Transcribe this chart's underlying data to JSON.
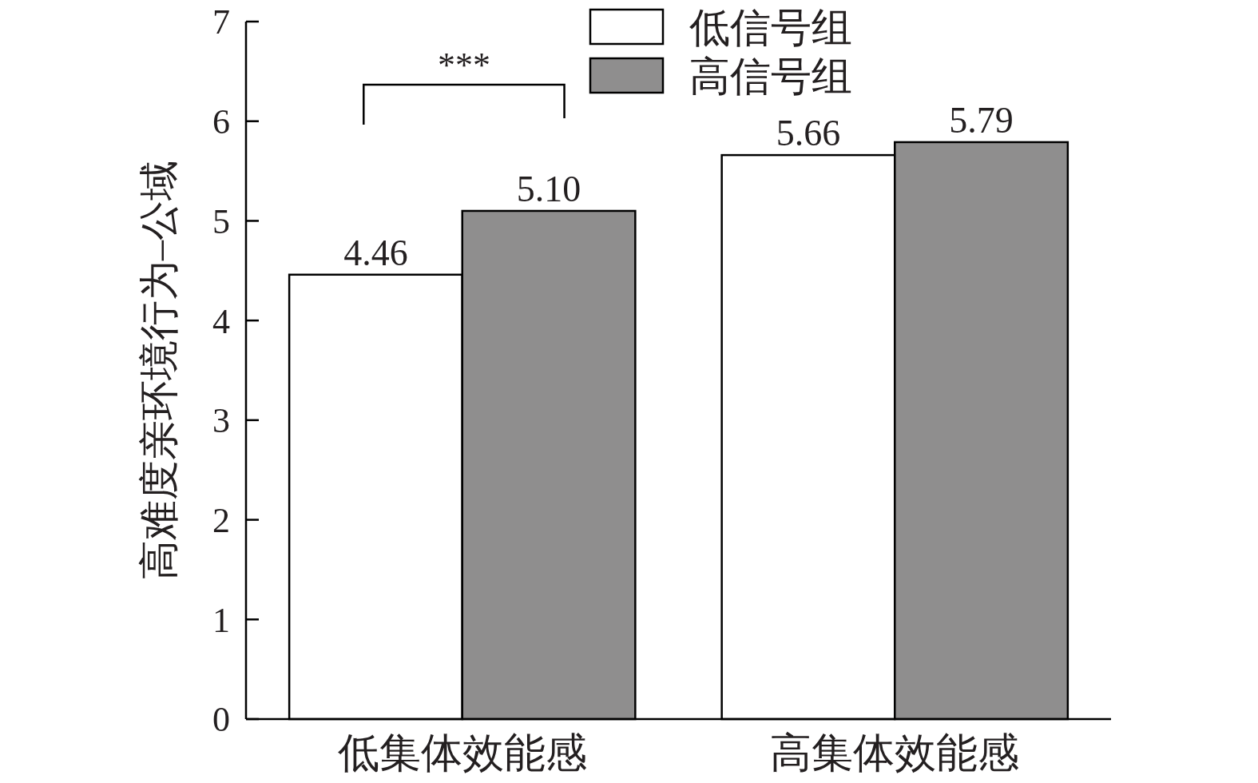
{
  "chart_data": {
    "type": "bar",
    "ylabel": "高难度亲环境行为–公域",
    "categories": [
      "低集体效能感",
      "高集体效能感"
    ],
    "series": [
      {
        "name": "低信号组",
        "color": "#ffffff",
        "values": [
          4.46,
          5.66
        ],
        "value_labels": [
          "4.46",
          "5.66"
        ]
      },
      {
        "name": "高信号组",
        "color": "#8f8e8e",
        "values": [
          5.1,
          5.79
        ],
        "value_labels": [
          "5.10",
          "5.79"
        ]
      }
    ],
    "ylim": [
      0,
      7
    ],
    "yticks": [
      0,
      1,
      2,
      3,
      4,
      5,
      6,
      7
    ],
    "legend": "top",
    "annotations": [
      "***"
    ]
  }
}
